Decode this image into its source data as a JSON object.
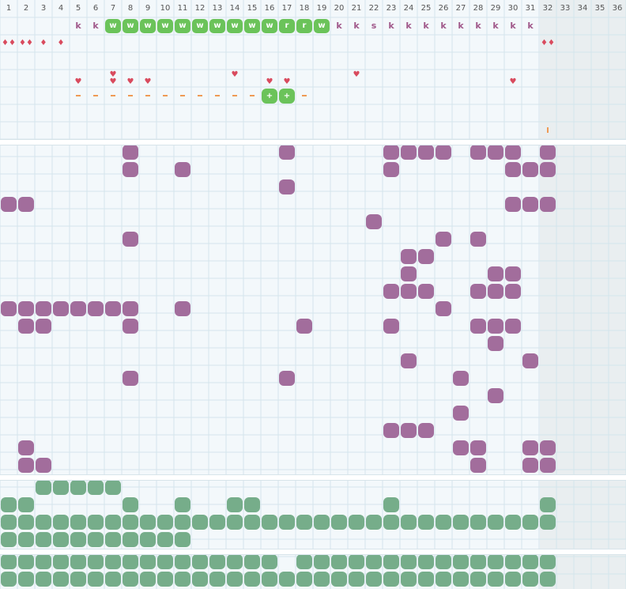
{
  "columns": [
    "1",
    "2",
    "3",
    "4",
    "5",
    "6",
    "7",
    "8",
    "9",
    "10",
    "11",
    "12",
    "13",
    "14",
    "15",
    "16",
    "17",
    "18",
    "19",
    "20",
    "21",
    "22",
    "23",
    "24",
    "25",
    "26",
    "27",
    "28",
    "29",
    "30",
    "31",
    "32",
    "33",
    "34",
    "35",
    "36"
  ],
  "track_row": [
    {
      "col": 5,
      "kind": "k",
      "label": "k"
    },
    {
      "col": 6,
      "kind": "k",
      "label": "k"
    },
    {
      "col": 7,
      "kind": "w",
      "label": "w"
    },
    {
      "col": 8,
      "kind": "w",
      "label": "w"
    },
    {
      "col": 9,
      "kind": "w",
      "label": "w"
    },
    {
      "col": 10,
      "kind": "w",
      "label": "w"
    },
    {
      "col": 11,
      "kind": "w",
      "label": "w"
    },
    {
      "col": 12,
      "kind": "w",
      "label": "w"
    },
    {
      "col": 13,
      "kind": "w",
      "label": "w"
    },
    {
      "col": 14,
      "kind": "w",
      "label": "w"
    },
    {
      "col": 15,
      "kind": "w",
      "label": "w"
    },
    {
      "col": 16,
      "kind": "w",
      "label": "w"
    },
    {
      "col": 17,
      "kind": "w",
      "label": "r"
    },
    {
      "col": 18,
      "kind": "w",
      "label": "r"
    },
    {
      "col": 19,
      "kind": "w",
      "label": "w"
    },
    {
      "col": 20,
      "kind": "k",
      "label": "k"
    },
    {
      "col": 21,
      "kind": "k",
      "label": "k"
    },
    {
      "col": 22,
      "kind": "k",
      "label": "s"
    },
    {
      "col": 23,
      "kind": "k",
      "label": "k"
    },
    {
      "col": 24,
      "kind": "k",
      "label": "k"
    },
    {
      "col": 25,
      "kind": "k",
      "label": "k"
    },
    {
      "col": 26,
      "kind": "k",
      "label": "k"
    },
    {
      "col": 27,
      "kind": "k",
      "label": "k"
    },
    {
      "col": 28,
      "kind": "k",
      "label": "k"
    },
    {
      "col": 29,
      "kind": "k",
      "label": "k"
    },
    {
      "col": 30,
      "kind": "k",
      "label": "k"
    },
    {
      "col": 31,
      "kind": "k",
      "label": "k"
    }
  ],
  "drops_row": [
    1,
    2,
    3,
    4,
    32
  ],
  "hearts": [
    [
      5,
      2
    ],
    [
      7,
      1
    ],
    [
      7,
      2
    ],
    [
      8,
      2
    ],
    [
      9,
      2
    ],
    [
      14,
      1
    ],
    [
      16,
      2
    ],
    [
      17,
      2
    ],
    [
      21,
      1
    ],
    [
      30,
      2
    ]
  ],
  "dashes": [
    5,
    6,
    7,
    8,
    9,
    10,
    11,
    12,
    13,
    14,
    15,
    18
  ],
  "plus_cells": [
    16,
    17
  ],
  "tick_col": 32,
  "purple_blobs": [
    [
      8,
      0
    ],
    [
      17,
      0
    ],
    [
      23,
      0
    ],
    [
      24,
      0
    ],
    [
      25,
      0
    ],
    [
      26,
      0
    ],
    [
      28,
      0
    ],
    [
      29,
      0
    ],
    [
      30,
      0
    ],
    [
      32,
      0
    ],
    [
      8,
      1
    ],
    [
      11,
      1
    ],
    [
      23,
      1
    ],
    [
      30,
      1
    ],
    [
      31,
      1
    ],
    [
      32,
      1
    ],
    [
      17,
      2
    ],
    [
      1,
      3
    ],
    [
      2,
      3
    ],
    [
      30,
      3
    ],
    [
      31,
      3
    ],
    [
      32,
      3
    ],
    [
      22,
      4
    ],
    [
      8,
      5
    ],
    [
      26,
      5
    ],
    [
      28,
      5
    ],
    [
      24,
      6
    ],
    [
      25,
      6
    ],
    [
      24,
      7
    ],
    [
      29,
      7
    ],
    [
      30,
      7
    ],
    [
      23,
      8
    ],
    [
      24,
      8
    ],
    [
      25,
      8
    ],
    [
      28,
      8
    ],
    [
      29,
      8
    ],
    [
      30,
      8
    ],
    [
      1,
      9
    ],
    [
      2,
      9
    ],
    [
      3,
      9
    ],
    [
      4,
      9
    ],
    [
      5,
      9
    ],
    [
      6,
      9
    ],
    [
      7,
      9
    ],
    [
      8,
      9
    ],
    [
      11,
      9
    ],
    [
      26,
      9
    ],
    [
      2,
      10
    ],
    [
      3,
      10
    ],
    [
      8,
      10
    ],
    [
      18,
      10
    ],
    [
      23,
      10
    ],
    [
      28,
      10
    ],
    [
      29,
      10
    ],
    [
      30,
      10
    ],
    [
      29,
      11
    ],
    [
      24,
      12
    ],
    [
      31,
      12
    ],
    [
      8,
      13
    ],
    [
      17,
      13
    ],
    [
      27,
      13
    ],
    [
      29,
      14
    ],
    [
      27,
      15
    ],
    [
      23,
      16
    ],
    [
      24,
      16
    ],
    [
      25,
      16
    ],
    [
      2,
      17
    ],
    [
      27,
      17
    ],
    [
      28,
      17
    ],
    [
      31,
      17
    ],
    [
      32,
      17
    ],
    [
      2,
      18
    ],
    [
      3,
      18
    ],
    [
      28,
      18
    ],
    [
      31,
      18
    ],
    [
      32,
      18
    ]
  ],
  "green_blobs_a": [
    [
      3,
      0
    ],
    [
      4,
      0
    ],
    [
      5,
      0
    ],
    [
      6,
      0
    ],
    [
      7,
      0
    ],
    [
      1,
      1
    ],
    [
      2,
      1
    ],
    [
      8,
      1
    ],
    [
      11,
      1
    ],
    [
      14,
      1
    ],
    [
      15,
      1
    ],
    [
      23,
      1
    ],
    [
      32,
      1
    ],
    [
      1,
      2
    ],
    [
      2,
      2
    ],
    [
      3,
      2
    ],
    [
      4,
      2
    ],
    [
      5,
      2
    ],
    [
      6,
      2
    ],
    [
      7,
      2
    ],
    [
      8,
      2
    ],
    [
      9,
      2
    ],
    [
      10,
      2
    ],
    [
      11,
      2
    ],
    [
      12,
      2
    ],
    [
      13,
      2
    ],
    [
      14,
      2
    ],
    [
      15,
      2
    ],
    [
      16,
      2
    ],
    [
      17,
      2
    ],
    [
      18,
      2
    ],
    [
      19,
      2
    ],
    [
      20,
      2
    ],
    [
      21,
      2
    ],
    [
      22,
      2
    ],
    [
      23,
      2
    ],
    [
      24,
      2
    ],
    [
      25,
      2
    ],
    [
      26,
      2
    ],
    [
      27,
      2
    ],
    [
      28,
      2
    ],
    [
      29,
      2
    ],
    [
      30,
      2
    ],
    [
      31,
      2
    ],
    [
      32,
      2
    ],
    [
      1,
      3
    ],
    [
      2,
      3
    ],
    [
      3,
      3
    ],
    [
      4,
      3
    ],
    [
      5,
      3
    ],
    [
      6,
      3
    ],
    [
      7,
      3
    ],
    [
      8,
      3
    ],
    [
      9,
      3
    ],
    [
      10,
      3
    ],
    [
      11,
      3
    ]
  ],
  "green_blobs_b": [
    [
      1,
      0
    ],
    [
      2,
      0
    ],
    [
      3,
      0
    ],
    [
      4,
      0
    ],
    [
      5,
      0
    ],
    [
      6,
      0
    ],
    [
      7,
      0
    ],
    [
      8,
      0
    ],
    [
      9,
      0
    ],
    [
      10,
      0
    ],
    [
      11,
      0
    ],
    [
      12,
      0
    ],
    [
      13,
      0
    ],
    [
      14,
      0
    ],
    [
      15,
      0
    ],
    [
      16,
      0
    ],
    [
      18,
      0
    ],
    [
      19,
      0
    ],
    [
      20,
      0
    ],
    [
      21,
      0
    ],
    [
      22,
      0
    ],
    [
      23,
      0
    ],
    [
      24,
      0
    ],
    [
      25,
      0
    ],
    [
      26,
      0
    ],
    [
      27,
      0
    ],
    [
      28,
      0
    ],
    [
      29,
      0
    ],
    [
      30,
      0
    ],
    [
      31,
      0
    ],
    [
      32,
      0
    ],
    [
      1,
      1
    ],
    [
      2,
      1
    ],
    [
      3,
      1
    ],
    [
      4,
      1
    ],
    [
      5,
      1
    ],
    [
      6,
      1
    ],
    [
      7,
      1
    ],
    [
      8,
      1
    ],
    [
      9,
      1
    ],
    [
      10,
      1
    ],
    [
      11,
      1
    ],
    [
      12,
      1
    ],
    [
      13,
      1
    ],
    [
      14,
      1
    ],
    [
      15,
      1
    ],
    [
      16,
      1
    ],
    [
      17,
      1
    ],
    [
      18,
      1
    ],
    [
      19,
      1
    ],
    [
      20,
      1
    ],
    [
      21,
      1
    ],
    [
      22,
      1
    ],
    [
      23,
      1
    ],
    [
      24,
      1
    ],
    [
      25,
      1
    ],
    [
      26,
      1
    ],
    [
      27,
      1
    ],
    [
      28,
      1
    ],
    [
      29,
      1
    ],
    [
      30,
      1
    ],
    [
      31,
      1
    ],
    [
      32,
      1
    ]
  ],
  "colors": {
    "purple": "#a26d9c",
    "green": "#76ad8a",
    "lime": "#6bc35a",
    "heart": "#d94b5e",
    "dash": "#ef9a55",
    "grid": "#d4e5ec"
  }
}
